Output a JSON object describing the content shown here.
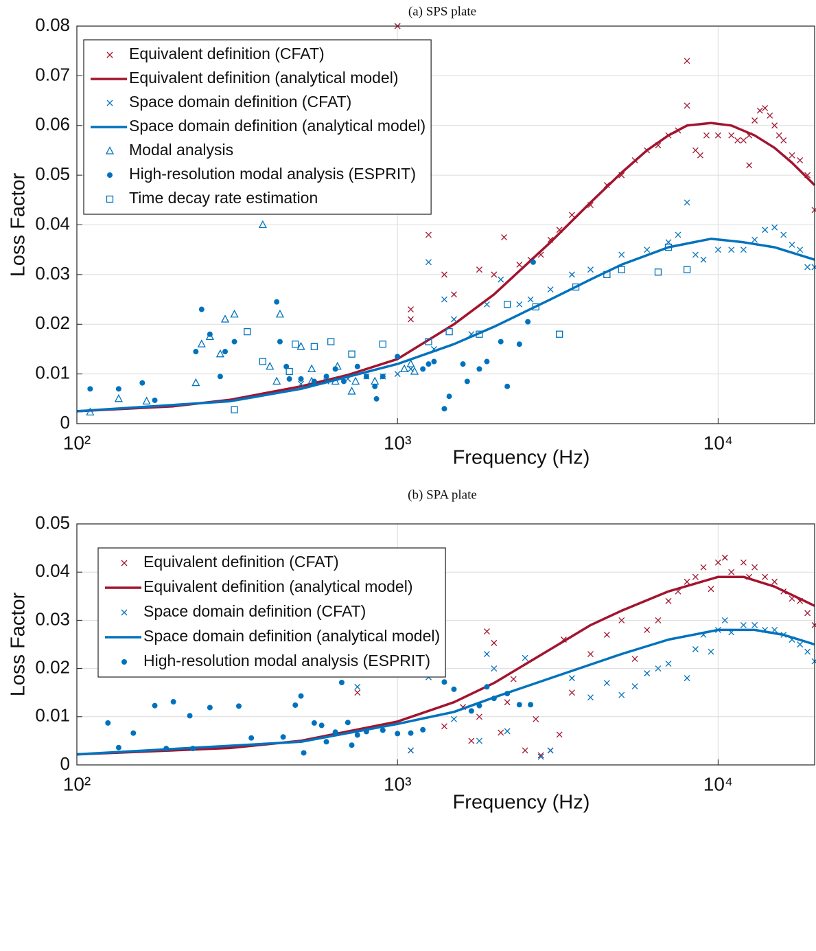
{
  "chart_data": [
    {
      "type": "scatter",
      "title": "(a) SPS plate",
      "xlabel": "Frequency (Hz)",
      "ylabel": "Loss Factor",
      "xscale": "log",
      "xlim": [
        100,
        20000
      ],
      "xticks": [
        {
          "value": 100,
          "label": "10²"
        },
        {
          "value": 1000,
          "label": "10³"
        },
        {
          "value": 10000,
          "label": "10⁴"
        }
      ],
      "ylim": [
        0,
        0.08
      ],
      "yticks": [
        0,
        0.01,
        0.02,
        0.03,
        0.04,
        0.05,
        0.06,
        0.07,
        0.08
      ],
      "grid": true,
      "legend": "upper-left",
      "series": [
        {
          "name": "Equivalent definition (CFAT)",
          "color": "#a2142f",
          "marker": "x",
          "x": [
            1000,
            1100,
            1100,
            1250,
            1400,
            1500,
            1800,
            2000,
            2150,
            2400,
            2600,
            2800,
            3000,
            3200,
            3500,
            4000,
            4500,
            5000,
            5500,
            6000,
            6500,
            7000,
            7500,
            8000,
            8000,
            8500,
            8800,
            9200,
            10000,
            11000,
            11500,
            12000,
            12500,
            12500,
            13000,
            13500,
            14000,
            14500,
            15000,
            15500,
            16000,
            17000,
            18000,
            19000,
            20000
          ],
          "values": [
            0.08,
            0.023,
            0.021,
            0.038,
            0.03,
            0.026,
            0.031,
            0.03,
            0.0375,
            0.032,
            0.033,
            0.034,
            0.037,
            0.039,
            0.042,
            0.044,
            0.048,
            0.05,
            0.053,
            0.055,
            0.056,
            0.058,
            0.059,
            0.064,
            0.073,
            0.055,
            0.054,
            0.058,
            0.058,
            0.058,
            0.057,
            0.057,
            0.058,
            0.052,
            0.061,
            0.063,
            0.0635,
            0.062,
            0.06,
            0.058,
            0.057,
            0.054,
            0.053,
            0.05,
            0.043
          ]
        },
        {
          "name": "Equivalent definition (analytical model)",
          "color": "#a2142f",
          "marker": "line",
          "x": [
            100,
            200,
            300,
            500,
            700,
            1000,
            1500,
            2000,
            3000,
            4000,
            5000,
            6000,
            7000,
            8000,
            9500,
            11000,
            13000,
            15000,
            17000,
            20000
          ],
          "values": [
            0.0025,
            0.0035,
            0.0048,
            0.0075,
            0.0098,
            0.013,
            0.02,
            0.026,
            0.0365,
            0.0445,
            0.0505,
            0.055,
            0.058,
            0.06,
            0.0605,
            0.06,
            0.058,
            0.0555,
            0.0525,
            0.048
          ]
        },
        {
          "name": "Space domain definition (CFAT)",
          "color": "#0072bd",
          "marker": "x",
          "x": [
            500,
            600,
            700,
            800,
            900,
            1000,
            1100,
            1250,
            1300,
            1400,
            1500,
            1700,
            1900,
            2100,
            2400,
            2600,
            3000,
            3500,
            4000,
            5000,
            6000,
            7000,
            7500,
            8000,
            8500,
            9000,
            10000,
            11000,
            12000,
            13000,
            14000,
            15000,
            16000,
            17000,
            18000,
            19000,
            20000
          ],
          "values": [
            0.008,
            0.0085,
            0.009,
            0.0095,
            0.0095,
            0.01,
            0.011,
            0.0325,
            0.015,
            0.025,
            0.021,
            0.018,
            0.024,
            0.029,
            0.024,
            0.025,
            0.027,
            0.03,
            0.031,
            0.034,
            0.035,
            0.0365,
            0.038,
            0.0445,
            0.034,
            0.033,
            0.035,
            0.035,
            0.035,
            0.037,
            0.039,
            0.0395,
            0.038,
            0.036,
            0.035,
            0.0315,
            0.0315
          ]
        },
        {
          "name": "Space domain definition (analytical model)",
          "color": "#0072bd",
          "marker": "line",
          "x": [
            100,
            300,
            500,
            1000,
            1500,
            2000,
            3000,
            4000,
            5000,
            7000,
            9500,
            12000,
            15000,
            20000
          ],
          "values": [
            0.0025,
            0.0045,
            0.007,
            0.012,
            0.016,
            0.0195,
            0.025,
            0.029,
            0.032,
            0.0355,
            0.0372,
            0.0365,
            0.0355,
            0.033
          ]
        },
        {
          "name": "Modal analysis",
          "color": "#0072bd",
          "marker": "triangle",
          "x": [
            110,
            135,
            165,
            235,
            245,
            260,
            280,
            290,
            310,
            380,
            400,
            420,
            430,
            500,
            540,
            540,
            640,
            650,
            720,
            740,
            850,
            1050,
            1100,
            1130
          ],
          "values": [
            0.0023,
            0.005,
            0.0045,
            0.0082,
            0.016,
            0.0175,
            0.014,
            0.021,
            0.022,
            0.04,
            0.0115,
            0.0085,
            0.022,
            0.0155,
            0.0085,
            0.011,
            0.0085,
            0.0115,
            0.0065,
            0.0085,
            0.0085,
            0.011,
            0.012,
            0.0105
          ]
        },
        {
          "name": "High-resolution modal analysis (ESPRIT)",
          "color": "#0072bd",
          "marker": "dot",
          "x": [
            110,
            135,
            160,
            175,
            235,
            245,
            260,
            280,
            290,
            310,
            420,
            430,
            450,
            460,
            500,
            550,
            600,
            640,
            680,
            750,
            800,
            850,
            860,
            900,
            1000,
            1200,
            1250,
            1300,
            1400,
            1450,
            1600,
            1650,
            1800,
            1900,
            2100,
            2200,
            2400,
            2550,
            2650
          ],
          "values": [
            0.007,
            0.007,
            0.0082,
            0.0047,
            0.0145,
            0.023,
            0.018,
            0.0095,
            0.0145,
            0.0165,
            0.0245,
            0.0165,
            0.0115,
            0.009,
            0.009,
            0.0085,
            0.0095,
            0.011,
            0.0085,
            0.0115,
            0.0095,
            0.0075,
            0.005,
            0.0095,
            0.0135,
            0.011,
            0.012,
            0.0125,
            0.003,
            0.0055,
            0.012,
            0.0085,
            0.011,
            0.0125,
            0.0165,
            0.0075,
            0.016,
            0.0205,
            0.0325
          ]
        },
        {
          "name": "Time decay rate estimation",
          "color": "#0072bd",
          "marker": "square",
          "x": [
            310,
            340,
            380,
            460,
            480,
            550,
            620,
            720,
            900,
            1250,
            1450,
            1800,
            2200,
            2700,
            3200,
            3600,
            4500,
            5000,
            6500,
            7000,
            8000
          ],
          "values": [
            0.0028,
            0.0185,
            0.0125,
            0.0105,
            0.016,
            0.0155,
            0.0165,
            0.014,
            0.016,
            0.0165,
            0.0185,
            0.018,
            0.024,
            0.0235,
            0.018,
            0.0275,
            0.03,
            0.031,
            0.0305,
            0.0355,
            0.031
          ]
        }
      ]
    },
    {
      "type": "scatter",
      "title": "(b) SPA plate",
      "xlabel": "Frequency (Hz)",
      "ylabel": "Loss Factor",
      "xscale": "log",
      "xlim": [
        100,
        20000
      ],
      "xticks": [
        {
          "value": 100,
          "label": "10²"
        },
        {
          "value": 1000,
          "label": "10³"
        },
        {
          "value": 10000,
          "label": "10⁴"
        }
      ],
      "ylim": [
        0,
        0.05
      ],
      "yticks": [
        0,
        0.01,
        0.02,
        0.03,
        0.04,
        0.05
      ],
      "grid": true,
      "legend": "upper-left",
      "series": [
        {
          "name": "Equivalent definition (CFAT)",
          "color": "#a2142f",
          "marker": "x",
          "x": [
            680,
            750,
            1100,
            1400,
            1600,
            1700,
            1800,
            1900,
            2000,
            2100,
            2200,
            2300,
            2500,
            2700,
            2800,
            3000,
            3200,
            3300,
            3500,
            4000,
            4500,
            5000,
            5500,
            6000,
            6500,
            7000,
            7500,
            8000,
            8500,
            9000,
            9500,
            10000,
            10500,
            11000,
            12000,
            12500,
            13000,
            14000,
            15000,
            16000,
            17000,
            18000,
            19000,
            20000
          ],
          "values": [
            0.0192,
            0.015,
            0.003,
            0.008,
            0.012,
            0.005,
            0.01,
            0.0277,
            0.0253,
            0.0067,
            0.013,
            0.0178,
            0.003,
            0.0095,
            0.002,
            0.003,
            0.0063,
            0.026,
            0.015,
            0.023,
            0.027,
            0.03,
            0.022,
            0.028,
            0.03,
            0.034,
            0.036,
            0.038,
            0.039,
            0.041,
            0.0365,
            0.042,
            0.043,
            0.04,
            0.042,
            0.039,
            0.041,
            0.039,
            0.038,
            0.036,
            0.0345,
            0.034,
            0.0315,
            0.029
          ]
        },
        {
          "name": "Equivalent definition (analytical model)",
          "color": "#a2142f",
          "marker": "line",
          "x": [
            100,
            300,
            500,
            1000,
            1500,
            2000,
            3000,
            4000,
            5000,
            7000,
            10000,
            12000,
            15000,
            20000
          ],
          "values": [
            0.0022,
            0.0035,
            0.005,
            0.009,
            0.013,
            0.017,
            0.024,
            0.029,
            0.032,
            0.036,
            0.039,
            0.039,
            0.037,
            0.033
          ]
        },
        {
          "name": "Space domain definition (CFAT)",
          "color": "#0072bd",
          "marker": "x",
          "x": [
            680,
            750,
            1100,
            1250,
            1500,
            1800,
            1900,
            2000,
            2200,
            2500,
            2800,
            3000,
            3500,
            4000,
            4500,
            5000,
            5500,
            6000,
            6500,
            7000,
            8000,
            8500,
            9000,
            9500,
            10000,
            10500,
            11000,
            12000,
            13000,
            14000,
            15000,
            16000,
            17000,
            18000,
            19000,
            20000
          ],
          "values": [
            0.0215,
            0.0162,
            0.003,
            0.0182,
            0.0095,
            0.005,
            0.023,
            0.02,
            0.007,
            0.0222,
            0.0017,
            0.003,
            0.018,
            0.014,
            0.017,
            0.0145,
            0.0163,
            0.019,
            0.02,
            0.021,
            0.018,
            0.024,
            0.027,
            0.0235,
            0.028,
            0.03,
            0.0275,
            0.029,
            0.029,
            0.028,
            0.028,
            0.027,
            0.026,
            0.025,
            0.0235,
            0.0215
          ]
        },
        {
          "name": "Space domain definition (analytical model)",
          "color": "#0072bd",
          "marker": "line",
          "x": [
            100,
            500,
            1000,
            1500,
            2000,
            3000,
            5000,
            7000,
            10000,
            13000,
            16000,
            20000
          ],
          "values": [
            0.0022,
            0.0048,
            0.0085,
            0.011,
            0.014,
            0.018,
            0.023,
            0.026,
            0.028,
            0.028,
            0.027,
            0.025
          ]
        },
        {
          "name": "High-resolution modal analysis (ESPRIT)",
          "color": "#0072bd",
          "marker": "dot",
          "x": [
            125,
            135,
            150,
            175,
            190,
            200,
            225,
            230,
            260,
            320,
            350,
            410,
            440,
            480,
            500,
            510,
            550,
            580,
            600,
            640,
            670,
            700,
            720,
            750,
            800,
            900,
            1000,
            1100,
            1200,
            1250,
            1300,
            1400,
            1500,
            1700,
            1800,
            1900,
            2000,
            2200,
            2400,
            2600
          ],
          "values": [
            0.0087,
            0.0036,
            0.0066,
            0.0123,
            0.0034,
            0.0131,
            0.0102,
            0.0034,
            0.0119,
            0.0122,
            0.0056,
            0.0263,
            0.0058,
            0.0124,
            0.0143,
            0.0025,
            0.0087,
            0.0082,
            0.0048,
            0.0068,
            0.0171,
            0.0088,
            0.0041,
            0.0062,
            0.0069,
            0.0072,
            0.0065,
            0.0066,
            0.0073,
            0.0211,
            0.0198,
            0.0172,
            0.0157,
            0.0112,
            0.0123,
            0.0162,
            0.0138,
            0.0148,
            0.0125,
            0.0125
          ]
        }
      ]
    }
  ]
}
